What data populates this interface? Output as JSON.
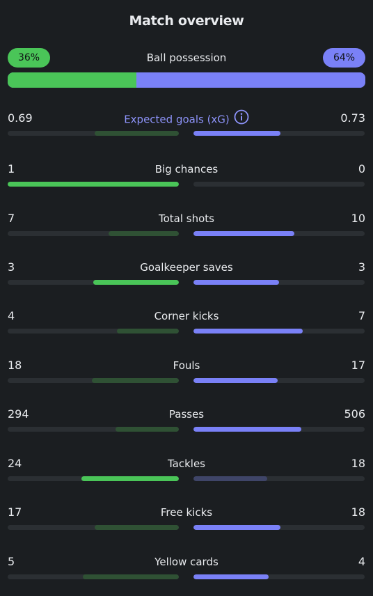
{
  "title": "Match overview",
  "colors": {
    "home": "#4ac558",
    "home_weak": "#2f5134",
    "away": "#7a81f7",
    "away_weak": "#3f4568",
    "track": "#2b2f33",
    "background": "#1b1e21"
  },
  "possession": {
    "label": "Ball possession",
    "home_text": "36%",
    "away_text": "64%",
    "home_fraction": 0.36,
    "away_fraction": 0.64
  },
  "stats": [
    {
      "label": "Expected goals (xG)",
      "home": "0.69",
      "away": "0.73",
      "home_fill": 0.49,
      "away_fill": 0.51,
      "home_leads": false,
      "away_leads": true,
      "accent": true,
      "info_icon": "info-circle-icon"
    },
    {
      "label": "Big chances",
      "home": "1",
      "away": "0",
      "home_fill": 1.0,
      "away_fill": 0.0,
      "home_leads": true,
      "away_leads": false
    },
    {
      "label": "Total shots",
      "home": "7",
      "away": "10",
      "home_fill": 0.41,
      "away_fill": 0.59,
      "home_leads": false,
      "away_leads": true
    },
    {
      "label": "Goalkeeper saves",
      "home": "3",
      "away": "3",
      "home_fill": 0.5,
      "away_fill": 0.5,
      "home_leads": true,
      "away_leads": true
    },
    {
      "label": "Corner kicks",
      "home": "4",
      "away": "7",
      "home_fill": 0.36,
      "away_fill": 0.64,
      "home_leads": false,
      "away_leads": true
    },
    {
      "label": "Fouls",
      "home": "18",
      "away": "17",
      "home_fill": 0.51,
      "away_fill": 0.49,
      "home_leads": false,
      "away_leads": true
    },
    {
      "label": "Passes",
      "home": "294",
      "away": "506",
      "home_fill": 0.37,
      "away_fill": 0.63,
      "home_leads": false,
      "away_leads": true
    },
    {
      "label": "Tackles",
      "home": "24",
      "away": "18",
      "home_fill": 0.57,
      "away_fill": 0.43,
      "home_leads": true,
      "away_leads": false
    },
    {
      "label": "Free kicks",
      "home": "17",
      "away": "18",
      "home_fill": 0.49,
      "away_fill": 0.51,
      "home_leads": false,
      "away_leads": true
    },
    {
      "label": "Yellow cards",
      "home": "5",
      "away": "4",
      "home_fill": 0.56,
      "away_fill": 0.44,
      "home_leads": false,
      "away_leads": true
    }
  ]
}
